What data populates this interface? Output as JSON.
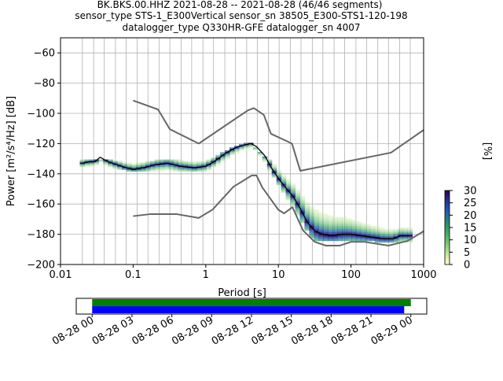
{
  "chart_data": {
    "type": "heatmap",
    "title_lines": [
      "BK.BKS.00.HHZ   2021-08-28 -- 2021-08-28  (46/46 segments)",
      "sensor_type STS-1_E300Vertical sensor_sn 38505_E300-STS1-120-198",
      "datalogger_type Q330HR-GFE datalogger_sn 4007"
    ],
    "xlabel": "Period [s]",
    "ylabel": "Power [m²/s⁴/Hz] [dB]",
    "xscale": "log",
    "xlim": [
      0.01,
      1000
    ],
    "ylim": [
      -200,
      -50
    ],
    "grid": true,
    "x_ticks": [
      {
        "value": 0.01,
        "label": "0.01"
      },
      {
        "value": 0.1,
        "label": "0.1"
      },
      {
        "value": 1,
        "label": "1"
      },
      {
        "value": 10,
        "label": "10"
      },
      {
        "value": 100,
        "label": "100"
      },
      {
        "value": 1000,
        "label": "1000"
      }
    ],
    "y_ticks": [
      {
        "value": -60,
        "label": "−60"
      },
      {
        "value": -80,
        "label": "−80"
      },
      {
        "value": -100,
        "label": "−100"
      },
      {
        "value": -120,
        "label": "−120"
      },
      {
        "value": -140,
        "label": "−140"
      },
      {
        "value": -160,
        "label": "−160"
      },
      {
        "value": -180,
        "label": "−180"
      },
      {
        "value": -200,
        "label": "−200"
      }
    ],
    "grid_periods": [
      0.02,
      0.0286,
      0.04,
      0.0571,
      0.08,
      0.114,
      0.16,
      0.229,
      0.32,
      0.457,
      0.64,
      0.914,
      1.28,
      1.83,
      2.56,
      3.66,
      5.12,
      7.31,
      10.24,
      14.6,
      20.5,
      29.3,
      41.0,
      58.5,
      81.9,
      117,
      164,
      234,
      328,
      468,
      655
    ],
    "series": [
      {
        "name": "",
        "role": "new-high-noise-model",
        "color": "#666666",
        "x": [
          0.1,
          0.22,
          0.32,
          0.8,
          3.8,
          4.6,
          6.3,
          7.9,
          15.4,
          20,
          354.8,
          1000
        ],
        "y": [
          -91.5,
          -97.4,
          -110.5,
          -120,
          -98,
          -96.5,
          -101,
          -113.5,
          -120,
          -138,
          -126,
          -111
        ]
      },
      {
        "name": "",
        "role": "new-low-noise-model",
        "color": "#666666",
        "x": [
          0.1,
          0.17,
          0.4,
          0.8,
          1.24,
          2.4,
          4.3,
          5,
          6,
          10,
          12,
          15.6,
          21.9,
          31.6,
          45,
          70,
          101,
          154,
          328,
          600,
          1000
        ],
        "y": [
          -168,
          -166.7,
          -166.7,
          -169.2,
          -163.7,
          -148.6,
          -141.1,
          -141.1,
          -149,
          -163.8,
          -166.2,
          -162.1,
          -177.5,
          -185,
          -187.5,
          -187.5,
          -185,
          -185,
          -187.5,
          -184.4,
          -178
        ]
      },
      {
        "name": "",
        "role": "mode",
        "color": "#000000",
        "x": [
          0.02,
          0.025,
          0.03,
          0.035,
          0.045,
          0.06,
          0.08,
          0.1,
          0.14,
          0.2,
          0.3,
          0.45,
          0.7,
          1.0,
          1.3,
          1.8,
          2.5,
          3.3,
          4.2,
          5.0,
          6.5,
          8.0,
          10,
          13,
          16,
          20,
          25,
          32,
          40,
          55,
          75,
          100,
          140,
          200,
          280,
          380,
          480,
          560,
          650
        ],
        "y": [
          -133,
          -132,
          -132,
          -129,
          -132,
          -134,
          -136,
          -137,
          -136,
          -134,
          -133,
          -135,
          -136,
          -135,
          -132,
          -127,
          -123,
          -121,
          -120,
          -122,
          -128,
          -136,
          -143,
          -150,
          -155,
          -163,
          -172,
          -178,
          -180,
          -181,
          -180,
          -180,
          -181,
          -182,
          -183,
          -183,
          -181,
          -181,
          -181
        ]
      }
    ],
    "density_cloud": {
      "approx_x": [
        0.02,
        0.05,
        0.1,
        0.3,
        1.0,
        2.0,
        4.0,
        8.0,
        15,
        30,
        60,
        100,
        200,
        400,
        650
      ],
      "approx_y_low": [
        -135,
        -136,
        -139,
        -138,
        -138,
        -131,
        -122,
        -140,
        -160,
        -184,
        -184,
        -184,
        -185,
        -186,
        -185
      ],
      "approx_y_high": [
        -131,
        -131,
        -133,
        -130,
        -132,
        -124,
        -119,
        -132,
        -145,
        -153,
        -158,
        -163,
        -170,
        -175,
        -176
      ]
    },
    "colorbar": {
      "label": "[%]",
      "min": 0,
      "max": 30,
      "ticks": [
        {
          "value": 0,
          "label": "0"
        },
        {
          "value": 5,
          "label": "5"
        },
        {
          "value": 10,
          "label": "10"
        },
        {
          "value": 15,
          "label": "15"
        },
        {
          "value": 20,
          "label": "20"
        },
        {
          "value": 25,
          "label": "25"
        },
        {
          "value": 30,
          "label": "30"
        }
      ],
      "colors": [
        "#ffffcc",
        "#c2e699",
        "#78c679",
        "#41ab5d",
        "#238b73",
        "#225ea8",
        "#253494",
        "#2d004b"
      ]
    },
    "timeline": {
      "time_labels": [
        "08-28 00",
        "08-28 03",
        "08-28 06",
        "08-28 09",
        "08-28 12",
        "08-28 15",
        "08-28 18",
        "08-28 21",
        "08-29 00"
      ],
      "tick_hours": [
        0,
        3,
        6,
        9,
        12,
        15,
        18,
        21,
        24
      ],
      "xlim_hours": [
        -1.2,
        25.2
      ],
      "bars": [
        {
          "name": "",
          "color": "#008000",
          "start_hours": 0,
          "end_hours": 24.0
        },
        {
          "name": "",
          "color": "#0000ff",
          "start_hours": 0,
          "end_hours": 23.5
        }
      ]
    }
  }
}
